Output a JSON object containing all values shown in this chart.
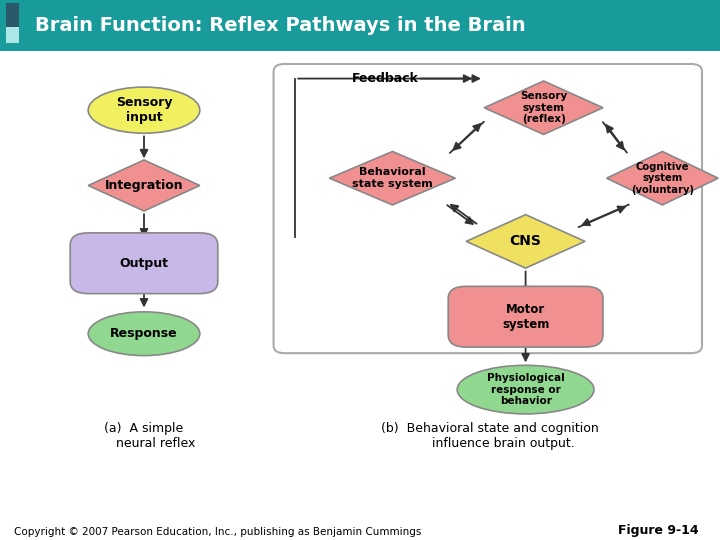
{
  "title": "Brain Function: Reflex Pathways in the Brain",
  "title_bg": "#1a9b9b",
  "title_color": "#ffffff",
  "copyright": "Copyright © 2007 Pearson Education, Inc., publishing as Benjamin Cummings",
  "figure_label": "Figure 9-14",
  "bg_color": "#ffffff",
  "deco_light": "#aae8e8",
  "deco_dark": "#2a5a6a",
  "deco_mid": "#3a7a8a",
  "arrow_color": "#333333",
  "box_edge": "#aaaaaa",
  "node_edge": "#888888"
}
